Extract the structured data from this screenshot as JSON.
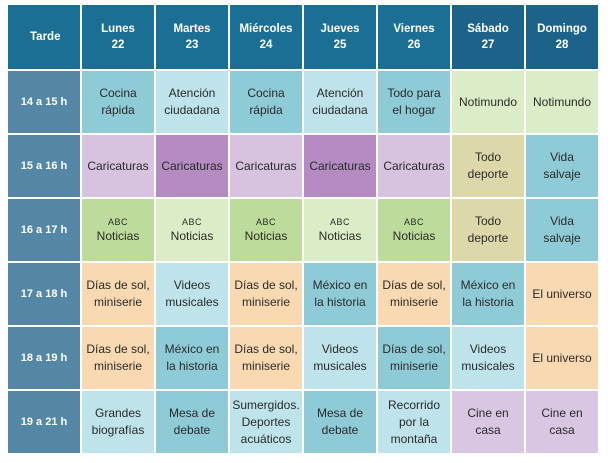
{
  "header": {
    "corner": "Tarde",
    "days": [
      {
        "name": "Lunes",
        "date": "22"
      },
      {
        "name": "Martes",
        "date": "23"
      },
      {
        "name": "Miércoles",
        "date": "24"
      },
      {
        "name": "Jueves",
        "date": "25"
      },
      {
        "name": "Viernes",
        "date": "26"
      },
      {
        "name": "Sábado",
        "date": "27"
      },
      {
        "name": "Domingo",
        "date": "28"
      }
    ]
  },
  "rows": [
    {
      "time": "14 a 15 h",
      "cells": [
        {
          "l1": "Cocina",
          "l2": "rápida"
        },
        {
          "l1": "Atención",
          "l2": "ciudadana"
        },
        {
          "l1": "Cocina",
          "l2": "rápida"
        },
        {
          "l1": "Atención",
          "l2": "ciudadana"
        },
        {
          "l1": "Todo para",
          "l2": "el hogar"
        },
        {
          "l1": "Notimundo"
        },
        {
          "l1": "Notimundo"
        }
      ]
    },
    {
      "time": "15 a 16 h",
      "cells": [
        {
          "l1": "Caricaturas"
        },
        {
          "l1": "Caricaturas"
        },
        {
          "l1": "Caricaturas"
        },
        {
          "l1": "Caricaturas"
        },
        {
          "l1": "Caricaturas"
        },
        {
          "l1": "Todo",
          "l2": "deporte"
        },
        {
          "l1": "Vida",
          "l2": "salvaje"
        }
      ]
    },
    {
      "time": "16 a 17 h",
      "cells": [
        {
          "abc": "ABC",
          "l1": "Noticias"
        },
        {
          "abc": "ABC",
          "l1": "Noticias"
        },
        {
          "abc": "ABC",
          "l1": "Noticias"
        },
        {
          "abc": "ABC",
          "l1": "Noticias"
        },
        {
          "abc": "ABC",
          "l1": "Noticias"
        },
        {
          "l1": "Todo",
          "l2": "deporte"
        },
        {
          "l1": "Vida",
          "l2": "salvaje"
        }
      ]
    },
    {
      "time": "17 a 18 h",
      "cells": [
        {
          "l1": "Días de sol,",
          "l2": "miniserie"
        },
        {
          "l1": "Videos",
          "l2": "musicales"
        },
        {
          "l1": "Días de sol,",
          "l2": "miniserie"
        },
        {
          "l1": "México en",
          "l2": "la historia"
        },
        {
          "l1": "Días de sol,",
          "l2": "miniserie"
        },
        {
          "l1": "México en",
          "l2": "la historia"
        },
        {
          "l1": "El universo"
        }
      ]
    },
    {
      "time": "18 a 19 h",
      "cells": [
        {
          "l1": "Días de sol,",
          "l2": "miniserie"
        },
        {
          "l1": "México en",
          "l2": "la historia"
        },
        {
          "l1": "Días de sol,",
          "l2": "miniserie"
        },
        {
          "l1": "Videos",
          "l2": "musicales"
        },
        {
          "l1": "Días de sol,",
          "l2": "miniserie"
        },
        {
          "l1": "Videos",
          "l2": "musicales"
        },
        {
          "l1": "El universo"
        }
      ]
    },
    {
      "time": "19 a 21 h",
      "cells": [
        {
          "l1": "Grandes",
          "l2": "biografías"
        },
        {
          "l1": "Mesa de",
          "l2": "debate"
        },
        {
          "l1": "Sumergidos.",
          "l2": "Deportes",
          "l3": "acuáticos"
        },
        {
          "l1": "Mesa de",
          "l2": "debate"
        },
        {
          "l1": "Recorrido",
          "l2": "por la",
          "l3": "montaña"
        },
        {
          "l1": "Cine en",
          "l2": "casa"
        },
        {
          "l1": "Cine en",
          "l2": "casa"
        }
      ]
    }
  ],
  "colors": {
    "header": "#1b6f94",
    "time_column": "#5486a6",
    "teal": "#8ecbd6",
    "light_blue": "#bfe3ea",
    "lilac": "#d7c3df",
    "purple": "#b48cc2",
    "green": "#bddb9a",
    "peach": "#f8d9b1",
    "khaki": "#ddd8aa",
    "light_green": "#dbedc6"
  }
}
